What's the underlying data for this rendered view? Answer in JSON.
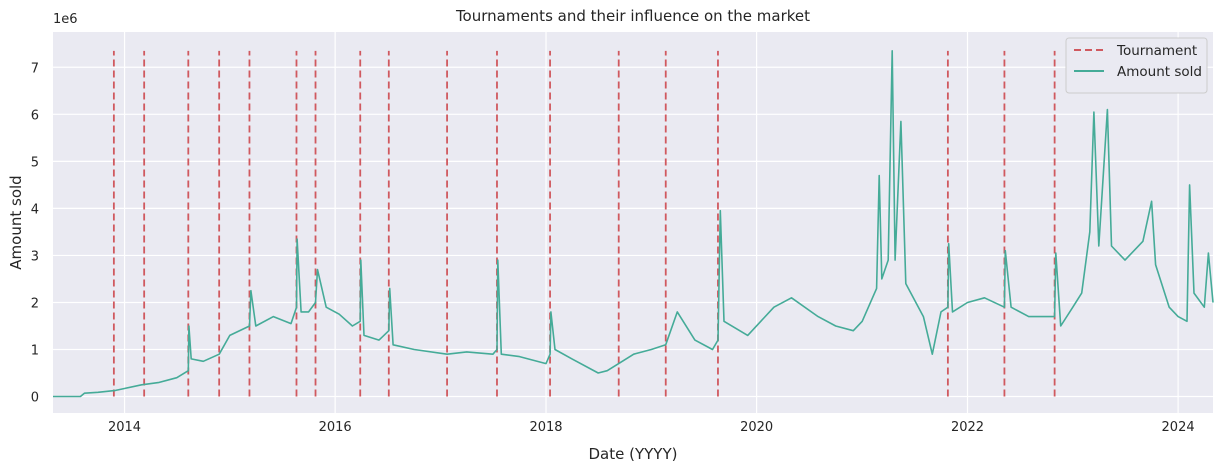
{
  "chart_data": {
    "type": "line",
    "title": "Tournaments and their influence on the market",
    "xlabel": "Date (YYYY)",
    "ylabel": "Amount sold",
    "y_scale_label": "1e6",
    "xlim": [
      "2013-04-28",
      "2024-05-01"
    ],
    "ylim": [
      -0.35,
      7.75
    ],
    "x_ticks": [
      "2014",
      "2016",
      "2018",
      "2020",
      "2022",
      "2024"
    ],
    "y_ticks": [
      "0",
      "1",
      "2",
      "3",
      "4",
      "5",
      "6",
      "7"
    ],
    "grid": true,
    "legend_position": "top-right",
    "colors": {
      "background": "#EAEAF2",
      "grid": "#FFFFFF",
      "amount": "#45AB98",
      "tournament": "#D0595F"
    },
    "series": [
      {
        "name": "Tournament",
        "kind": "vertical-dashed",
        "dates": [
          "2013-11-25",
          "2014-03-10",
          "2014-08-10",
          "2014-11-25",
          "2015-03-10",
          "2015-08-20",
          "2015-10-25",
          "2016-03-28",
          "2016-07-05",
          "2017-01-23",
          "2017-07-15",
          "2018-01-15",
          "2018-09-10",
          "2019-02-20",
          "2019-08-20",
          "2021-10-25",
          "2022-05-09",
          "2022-10-30"
        ],
        "top": 7.35
      },
      {
        "name": "Amount sold",
        "kind": "line",
        "points": [
          [
            "2013-04-28",
            0.0
          ],
          [
            "2013-08-01",
            0.0
          ],
          [
            "2013-08-15",
            0.07
          ],
          [
            "2013-10-01",
            0.09
          ],
          [
            "2013-12-01",
            0.13
          ],
          [
            "2014-01-01",
            0.17
          ],
          [
            "2014-03-01",
            0.25
          ],
          [
            "2014-05-01",
            0.3
          ],
          [
            "2014-07-01",
            0.4
          ],
          [
            "2014-08-10",
            0.55
          ],
          [
            "2014-08-12",
            1.5
          ],
          [
            "2014-08-20",
            0.8
          ],
          [
            "2014-10-01",
            0.75
          ],
          [
            "2014-11-25",
            0.9
          ],
          [
            "2015-01-01",
            1.3
          ],
          [
            "2015-03-10",
            1.5
          ],
          [
            "2015-03-15",
            2.25
          ],
          [
            "2015-04-01",
            1.5
          ],
          [
            "2015-06-01",
            1.7
          ],
          [
            "2015-08-01",
            1.55
          ],
          [
            "2015-08-20",
            1.9
          ],
          [
            "2015-08-22",
            3.35
          ],
          [
            "2015-09-05",
            1.8
          ],
          [
            "2015-10-01",
            1.8
          ],
          [
            "2015-10-25",
            2.0
          ],
          [
            "2015-11-01",
            2.7
          ],
          [
            "2015-12-01",
            1.9
          ],
          [
            "2016-01-15",
            1.75
          ],
          [
            "2016-03-01",
            1.5
          ],
          [
            "2016-03-28",
            1.6
          ],
          [
            "2016-03-30",
            2.9
          ],
          [
            "2016-04-10",
            1.3
          ],
          [
            "2016-06-01",
            1.2
          ],
          [
            "2016-07-05",
            1.4
          ],
          [
            "2016-07-08",
            2.3
          ],
          [
            "2016-07-20",
            1.1
          ],
          [
            "2016-10-01",
            1.0
          ],
          [
            "2017-01-23",
            0.9
          ],
          [
            "2017-04-01",
            0.95
          ],
          [
            "2017-07-01",
            0.9
          ],
          [
            "2017-07-15",
            1.0
          ],
          [
            "2017-07-18",
            2.9
          ],
          [
            "2017-07-30",
            0.9
          ],
          [
            "2017-10-01",
            0.85
          ],
          [
            "2018-01-01",
            0.7
          ],
          [
            "2018-01-15",
            0.9
          ],
          [
            "2018-01-18",
            1.8
          ],
          [
            "2018-02-01",
            1.0
          ],
          [
            "2018-04-01",
            0.8
          ],
          [
            "2018-07-01",
            0.5
          ],
          [
            "2018-08-01",
            0.55
          ],
          [
            "2018-09-10",
            0.7
          ],
          [
            "2018-11-01",
            0.9
          ],
          [
            "2019-01-01",
            1.0
          ],
          [
            "2019-02-20",
            1.1
          ],
          [
            "2019-04-01",
            1.8
          ],
          [
            "2019-06-01",
            1.2
          ],
          [
            "2019-08-01",
            1.0
          ],
          [
            "2019-08-20",
            1.2
          ],
          [
            "2019-08-28",
            3.95
          ],
          [
            "2019-09-10",
            1.6
          ],
          [
            "2019-12-01",
            1.3
          ],
          [
            "2020-03-01",
            1.9
          ],
          [
            "2020-05-01",
            2.1
          ],
          [
            "2020-08-01",
            1.7
          ],
          [
            "2020-10-01",
            1.5
          ],
          [
            "2020-12-01",
            1.4
          ],
          [
            "2021-01-01",
            1.6
          ],
          [
            "2021-02-20",
            2.3
          ],
          [
            "2021-03-01",
            4.7
          ],
          [
            "2021-03-10",
            2.5
          ],
          [
            "2021-04-01",
            2.9
          ],
          [
            "2021-04-15",
            7.35
          ],
          [
            "2021-04-25",
            2.9
          ],
          [
            "2021-05-15",
            5.85
          ],
          [
            "2021-06-01",
            2.4
          ],
          [
            "2021-08-01",
            1.7
          ],
          [
            "2021-09-01",
            0.9
          ],
          [
            "2021-10-01",
            1.8
          ],
          [
            "2021-10-25",
            1.9
          ],
          [
            "2021-10-28",
            3.25
          ],
          [
            "2021-11-10",
            1.8
          ],
          [
            "2022-01-01",
            2.0
          ],
          [
            "2022-03-01",
            2.1
          ],
          [
            "2022-05-09",
            1.9
          ],
          [
            "2022-05-12",
            3.1
          ],
          [
            "2022-06-01",
            1.9
          ],
          [
            "2022-08-01",
            1.7
          ],
          [
            "2022-10-30",
            1.7
          ],
          [
            "2022-11-03",
            3.05
          ],
          [
            "2022-11-20",
            1.5
          ],
          [
            "2023-01-01",
            1.9
          ],
          [
            "2023-02-01",
            2.2
          ],
          [
            "2023-03-01",
            3.5
          ],
          [
            "2023-03-15",
            6.05
          ],
          [
            "2023-04-01",
            3.2
          ],
          [
            "2023-05-01",
            6.1
          ],
          [
            "2023-05-15",
            3.2
          ],
          [
            "2023-07-01",
            2.9
          ],
          [
            "2023-09-01",
            3.3
          ],
          [
            "2023-10-01",
            4.15
          ],
          [
            "2023-10-15",
            2.8
          ],
          [
            "2023-12-01",
            1.9
          ],
          [
            "2024-01-01",
            1.7
          ],
          [
            "2024-02-01",
            1.6
          ],
          [
            "2024-02-10",
            4.5
          ],
          [
            "2024-02-25",
            2.2
          ],
          [
            "2024-04-01",
            1.9
          ],
          [
            "2024-04-15",
            3.05
          ],
          [
            "2024-05-01",
            2.0
          ]
        ]
      }
    ]
  }
}
